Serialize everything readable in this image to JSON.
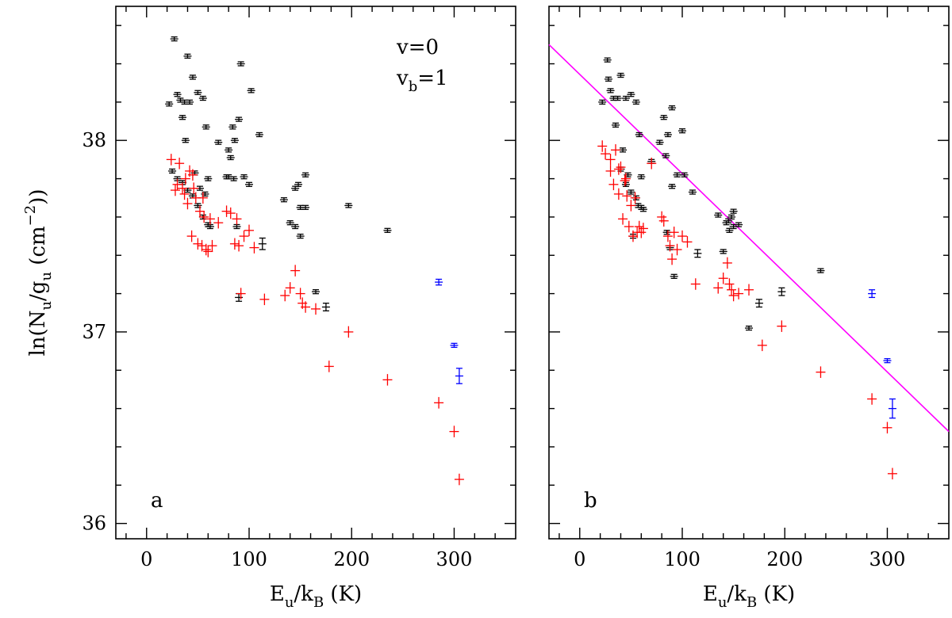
{
  "figure": {
    "ylabel_main": "ln(N",
    "ylabel_sub1": "u",
    "ylabel_mid": "/g",
    "ylabel_sub2": "u",
    "ylabel_end": " (cm",
    "ylabel_sup": "−2",
    "ylabel_close": "))",
    "xlabel_main": "E",
    "xlabel_sub1": "u",
    "xlabel_mid": "/k",
    "xlabel_sub2": "B",
    "xlabel_end": " (K)"
  },
  "legend": {
    "v0_label": "v=0",
    "vb_label_main": "v",
    "vb_label_sub": "b",
    "vb_label_end": "=1",
    "v0_color": "#000000",
    "vb_color": "#0000ff"
  },
  "colors": {
    "black_series": "#000000",
    "red_series": "#ff0000",
    "blue_series": "#0000ff",
    "fit_line": "#ff00ff"
  },
  "chart_data": [
    {
      "type": "scatter",
      "panel": "a",
      "xlim": [
        -30,
        360
      ],
      "ylim": [
        35.92,
        38.7
      ],
      "xticks": [
        0,
        100,
        200,
        300
      ],
      "yticks": [
        36,
        37,
        38
      ],
      "series": [
        {
          "name": "black",
          "x": [
            22,
            27,
            30,
            33,
            35,
            37,
            38,
            40,
            42,
            45,
            47,
            50,
            52,
            55,
            57,
            58,
            60,
            62,
            70,
            78,
            80,
            82,
            84,
            86,
            88,
            90,
            92,
            100,
            110,
            134,
            140,
            145,
            148,
            150,
            155,
            165,
            175,
            197,
            235,
            25,
            30,
            35,
            40,
            45,
            50,
            55,
            60,
            80,
            85,
            90,
            95,
            102,
            113,
            145,
            150,
            155
          ],
          "y": [
            38.19,
            38.53,
            38.24,
            38.21,
            38.12,
            38.2,
            38.0,
            38.44,
            38.2,
            38.33,
            37.83,
            38.25,
            37.75,
            38.22,
            37.72,
            38.07,
            37.8,
            37.55,
            37.99,
            37.81,
            37.95,
            37.91,
            38.07,
            38.0,
            37.55,
            38.11,
            38.4,
            37.77,
            38.03,
            37.69,
            37.57,
            37.55,
            37.77,
            37.5,
            37.82,
            37.21,
            37.13,
            37.66,
            37.53,
            37.84,
            37.8,
            37.78,
            37.74,
            37.71,
            37.66,
            37.6,
            37.56,
            37.81,
            37.8,
            37.18,
            37.81,
            38.26,
            37.46,
            37.75,
            37.65,
            37.65
          ],
          "yerr": [
            0.01,
            0.01,
            0.01,
            0.01,
            0.01,
            0.01,
            0.01,
            0.01,
            0.01,
            0.01,
            0.01,
            0.01,
            0.01,
            0.01,
            0.01,
            0.01,
            0.01,
            0.01,
            0.01,
            0.01,
            0.01,
            0.01,
            0.01,
            0.01,
            0.01,
            0.01,
            0.01,
            0.01,
            0.01,
            0.01,
            0.01,
            0.01,
            0.01,
            0.01,
            0.01,
            0.01,
            0.02,
            0.01,
            0.01,
            0.01,
            0.01,
            0.01,
            0.01,
            0.01,
            0.01,
            0.01,
            0.01,
            0.01,
            0.01,
            0.02,
            0.01,
            0.01,
            0.03,
            0.01,
            0.01,
            0.01
          ]
        },
        {
          "name": "red",
          "x": [
            24,
            28,
            32,
            35,
            37,
            40,
            42,
            44,
            46,
            48,
            50,
            52,
            54,
            56,
            58,
            60,
            62,
            64,
            70,
            78,
            82,
            86,
            88,
            90,
            92,
            95,
            100,
            105,
            115,
            135,
            140,
            145,
            150,
            152,
            155,
            165,
            178,
            197,
            235,
            285,
            300,
            305,
            30,
            38,
            45,
            55
          ],
          "y": [
            37.9,
            37.74,
            37.88,
            37.75,
            37.72,
            37.67,
            37.84,
            37.5,
            37.75,
            37.7,
            37.46,
            37.63,
            37.45,
            37.6,
            37.43,
            37.42,
            37.59,
            37.45,
            37.57,
            37.63,
            37.62,
            37.46,
            37.59,
            37.45,
            37.2,
            37.5,
            37.53,
            37.44,
            37.17,
            37.19,
            37.23,
            37.32,
            37.2,
            37.15,
            37.13,
            37.12,
            36.82,
            37.0,
            36.75,
            36.63,
            36.48,
            36.23,
            37.77,
            37.8,
            37.82,
            37.7
          ],
          "yerr": [
            0.03,
            0.03,
            0.03,
            0.03,
            0.03,
            0.03,
            0.03,
            0.03,
            0.03,
            0.03,
            0.03,
            0.03,
            0.03,
            0.03,
            0.03,
            0.03,
            0.03,
            0.03,
            0.03,
            0.03,
            0.03,
            0.03,
            0.03,
            0.03,
            0.03,
            0.03,
            0.03,
            0.03,
            0.03,
            0.03,
            0.03,
            0.03,
            0.03,
            0.03,
            0.03,
            0.03,
            0.03,
            0.03,
            0.03,
            0.03,
            0.03,
            0.03,
            0.03,
            0.03,
            0.03,
            0.03
          ]
        },
        {
          "name": "blue",
          "x": [
            285,
            300,
            305
          ],
          "y": [
            37.26,
            36.93,
            36.77
          ],
          "yerr": [
            0.015,
            0.01,
            0.04
          ]
        }
      ],
      "panel_label": "a",
      "legend": [
        "v=0",
        "vb=1"
      ]
    },
    {
      "type": "scatter",
      "panel": "b",
      "xlim": [
        -30,
        360
      ],
      "ylim": [
        35.92,
        38.7
      ],
      "xticks": [
        0,
        100,
        200,
        300
      ],
      "yticks": [
        36,
        37,
        38
      ],
      "series": [
        {
          "name": "black",
          "x": [
            22,
            27,
            28,
            30,
            33,
            35,
            37,
            40,
            42,
            45,
            47,
            50,
            52,
            55,
            57,
            58,
            60,
            62,
            70,
            78,
            82,
            84,
            86,
            88,
            90,
            92,
            100,
            110,
            115,
            135,
            140,
            143,
            146,
            148,
            150,
            155,
            165,
            175,
            197,
            235,
            40,
            45,
            50,
            55,
            60,
            85,
            90,
            95,
            102,
            145,
            150
          ],
          "y": [
            38.2,
            38.42,
            38.32,
            38.26,
            38.22,
            38.08,
            38.22,
            38.34,
            37.95,
            38.22,
            37.82,
            38.24,
            37.5,
            38.2,
            37.66,
            38.03,
            37.81,
            37.64,
            37.89,
            37.99,
            38.12,
            37.92,
            38.03,
            37.44,
            38.17,
            37.29,
            38.05,
            37.73,
            37.41,
            37.61,
            37.42,
            37.57,
            37.53,
            37.6,
            37.63,
            37.56,
            37.02,
            37.15,
            37.21,
            37.32,
            37.85,
            37.77,
            37.73,
            37.7,
            37.65,
            37.52,
            37.76,
            37.82,
            37.82,
            37.58,
            37.55
          ],
          "yerr": [
            0.01,
            0.01,
            0.01,
            0.01,
            0.01,
            0.01,
            0.01,
            0.01,
            0.01,
            0.01,
            0.01,
            0.01,
            0.01,
            0.01,
            0.01,
            0.01,
            0.01,
            0.01,
            0.01,
            0.01,
            0.01,
            0.01,
            0.01,
            0.01,
            0.01,
            0.01,
            0.01,
            0.01,
            0.02,
            0.01,
            0.01,
            0.01,
            0.01,
            0.01,
            0.01,
            0.01,
            0.01,
            0.02,
            0.02,
            0.01,
            0.01,
            0.01,
            0.01,
            0.01,
            0.01,
            0.01,
            0.01,
            0.01,
            0.01,
            0.01,
            0.01
          ]
        },
        {
          "name": "red",
          "x": [
            22,
            25,
            30,
            33,
            35,
            38,
            40,
            42,
            44,
            46,
            48,
            50,
            52,
            54,
            56,
            58,
            60,
            62,
            70,
            80,
            82,
            86,
            88,
            90,
            92,
            95,
            100,
            105,
            113,
            135,
            140,
            144,
            146,
            148,
            150,
            155,
            165,
            178,
            197,
            235,
            285,
            300,
            305,
            30,
            38,
            45
          ],
          "y": [
            37.97,
            37.93,
            37.84,
            37.77,
            37.95,
            37.72,
            37.86,
            37.59,
            37.79,
            37.71,
            37.55,
            37.66,
            37.5,
            37.7,
            37.52,
            37.55,
            37.52,
            37.54,
            37.88,
            37.6,
            37.58,
            37.5,
            37.45,
            37.38,
            37.52,
            37.43,
            37.5,
            37.47,
            37.25,
            37.23,
            37.28,
            37.36,
            37.25,
            37.22,
            37.19,
            37.2,
            37.22,
            36.93,
            37.03,
            36.79,
            36.65,
            36.5,
            36.26,
            37.9,
            37.85,
            37.8
          ],
          "yerr": [
            0.03,
            0.03,
            0.03,
            0.03,
            0.03,
            0.03,
            0.03,
            0.03,
            0.03,
            0.03,
            0.03,
            0.03,
            0.03,
            0.03,
            0.03,
            0.03,
            0.03,
            0.03,
            0.03,
            0.03,
            0.03,
            0.03,
            0.03,
            0.03,
            0.03,
            0.03,
            0.03,
            0.03,
            0.03,
            0.03,
            0.03,
            0.03,
            0.03,
            0.03,
            0.03,
            0.03,
            0.03,
            0.03,
            0.03,
            0.03,
            0.03,
            0.03,
            0.03,
            0.03,
            0.03,
            0.03
          ]
        },
        {
          "name": "blue",
          "x": [
            285,
            300,
            305
          ],
          "y": [
            37.2,
            36.85,
            36.6
          ],
          "yerr": [
            0.02,
            0.01,
            0.05
          ]
        }
      ],
      "fit_line": {
        "x": [
          -30,
          360
        ],
        "y": [
          38.5,
          36.48
        ]
      },
      "panel_label": "b"
    }
  ]
}
